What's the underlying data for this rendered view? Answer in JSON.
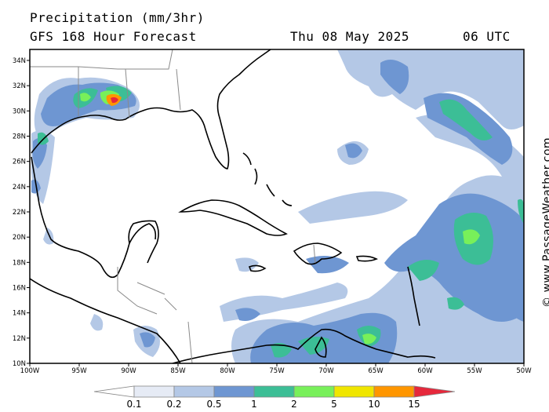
{
  "title": {
    "line1": "Precipitation (mm/3hr)",
    "line2": "GFS 168 Hour Forecast",
    "date": "Thu 08 May 2025",
    "time": "06 UTC"
  },
  "credit": "© www.PassageWeather.com",
  "axes": {
    "lat_labels": [
      "34N",
      "32N",
      "30N",
      "28N",
      "26N",
      "24N",
      "22N",
      "20N",
      "18N",
      "16N",
      "14N",
      "12N",
      "10N"
    ],
    "lon_labels": [
      "100W",
      "95W",
      "90W",
      "85W",
      "80W",
      "75W",
      "70W",
      "65W",
      "60W",
      "55W",
      "50W"
    ]
  },
  "legend": {
    "labels": [
      "0.1",
      "0.2",
      "0.5",
      "1",
      "2",
      "5",
      "10",
      "15"
    ],
    "colors": [
      "#ffffff",
      "#e6ebf5",
      "#b4c8e6",
      "#6e96d2",
      "#3cbe96",
      "#78f05a",
      "#f0e600",
      "#ff9600",
      "#e6283c"
    ]
  },
  "map": {
    "lon_range": [
      -100,
      -50
    ],
    "lat_range": [
      10,
      35
    ],
    "precip_colors": {
      "light": "#b4c8e6",
      "mod": "#6e96d2",
      "heavy": "#3cbe96",
      "vheavy": "#78f05a",
      "extreme": "#ff9600",
      "peak": "#e6283c"
    }
  }
}
